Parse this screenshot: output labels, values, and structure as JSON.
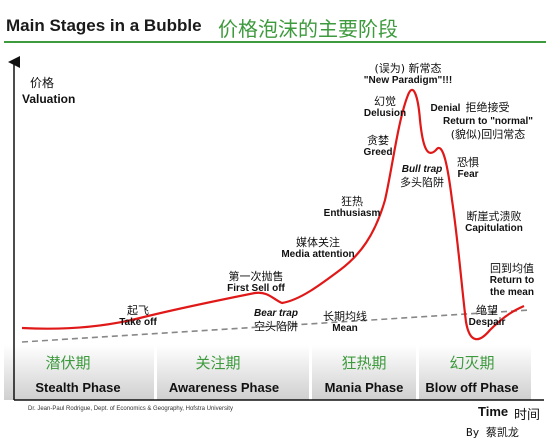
{
  "title_en": "Main Stages in a Bubble",
  "title_zh": "价格泡沫的主要阶段",
  "y_axis": {
    "zh": "价格",
    "en": "Valuation"
  },
  "x_axis": {
    "en": "Time",
    "zh": "时间"
  },
  "labels": {
    "takeoff": {
      "zh": "起飞",
      "en": "Take off"
    },
    "first_sell_off": {
      "zh": "第一次抛售",
      "en": "First Sell off"
    },
    "bear_trap": {
      "en": "Bear trap",
      "zh": "空头陷阱"
    },
    "media": {
      "zh": "媒体关注",
      "en": "Media attention"
    },
    "enthusiasm": {
      "zh": "狂热",
      "en": "Enthusiasm"
    },
    "greed": {
      "zh": "贪婪",
      "en": "Greed"
    },
    "delusion": {
      "zh": "幻觉",
      "en": "Delusion"
    },
    "new_paradigm": {
      "zh": "(误为) 新常态",
      "en": "\"New Paradigm\"!!!"
    },
    "denial": {
      "en": "Denial",
      "zh": "拒绝接受"
    },
    "return_normal": {
      "en": "Return to \"normal\"",
      "zh": "(貌似)回归常态"
    },
    "bull_trap": {
      "en": "Bull trap",
      "zh": "多头陷阱"
    },
    "fear": {
      "zh": "恐惧",
      "en": "Fear"
    },
    "capitulation": {
      "zh": "断崖式溃败",
      "en": "Capitulation"
    },
    "return_mean": {
      "zh": "回到均值",
      "en1": "Return to",
      "en2": "the mean"
    },
    "despair": {
      "zh": "绝望",
      "en": "Despair"
    },
    "mean": {
      "zh": "长期均线",
      "en": "Mean"
    }
  },
  "phases": [
    {
      "zh": "潜伏期",
      "en": "Stealth Phase"
    },
    {
      "zh": "关注期",
      "en": "Awareness Phase"
    },
    {
      "zh": "狂热期",
      "en": "Mania Phase"
    },
    {
      "zh": "幻灭期",
      "en": "Blow off Phase"
    }
  ],
  "credit": "Dr. Jean-Paul Rodrigue, Dept. of Economics & Geography, Hofstra University",
  "author": "By 蔡凯龙",
  "colors": {
    "curve": "#e01818",
    "phase_zh": "#3d9a3d",
    "mean_line": "#888888"
  }
}
